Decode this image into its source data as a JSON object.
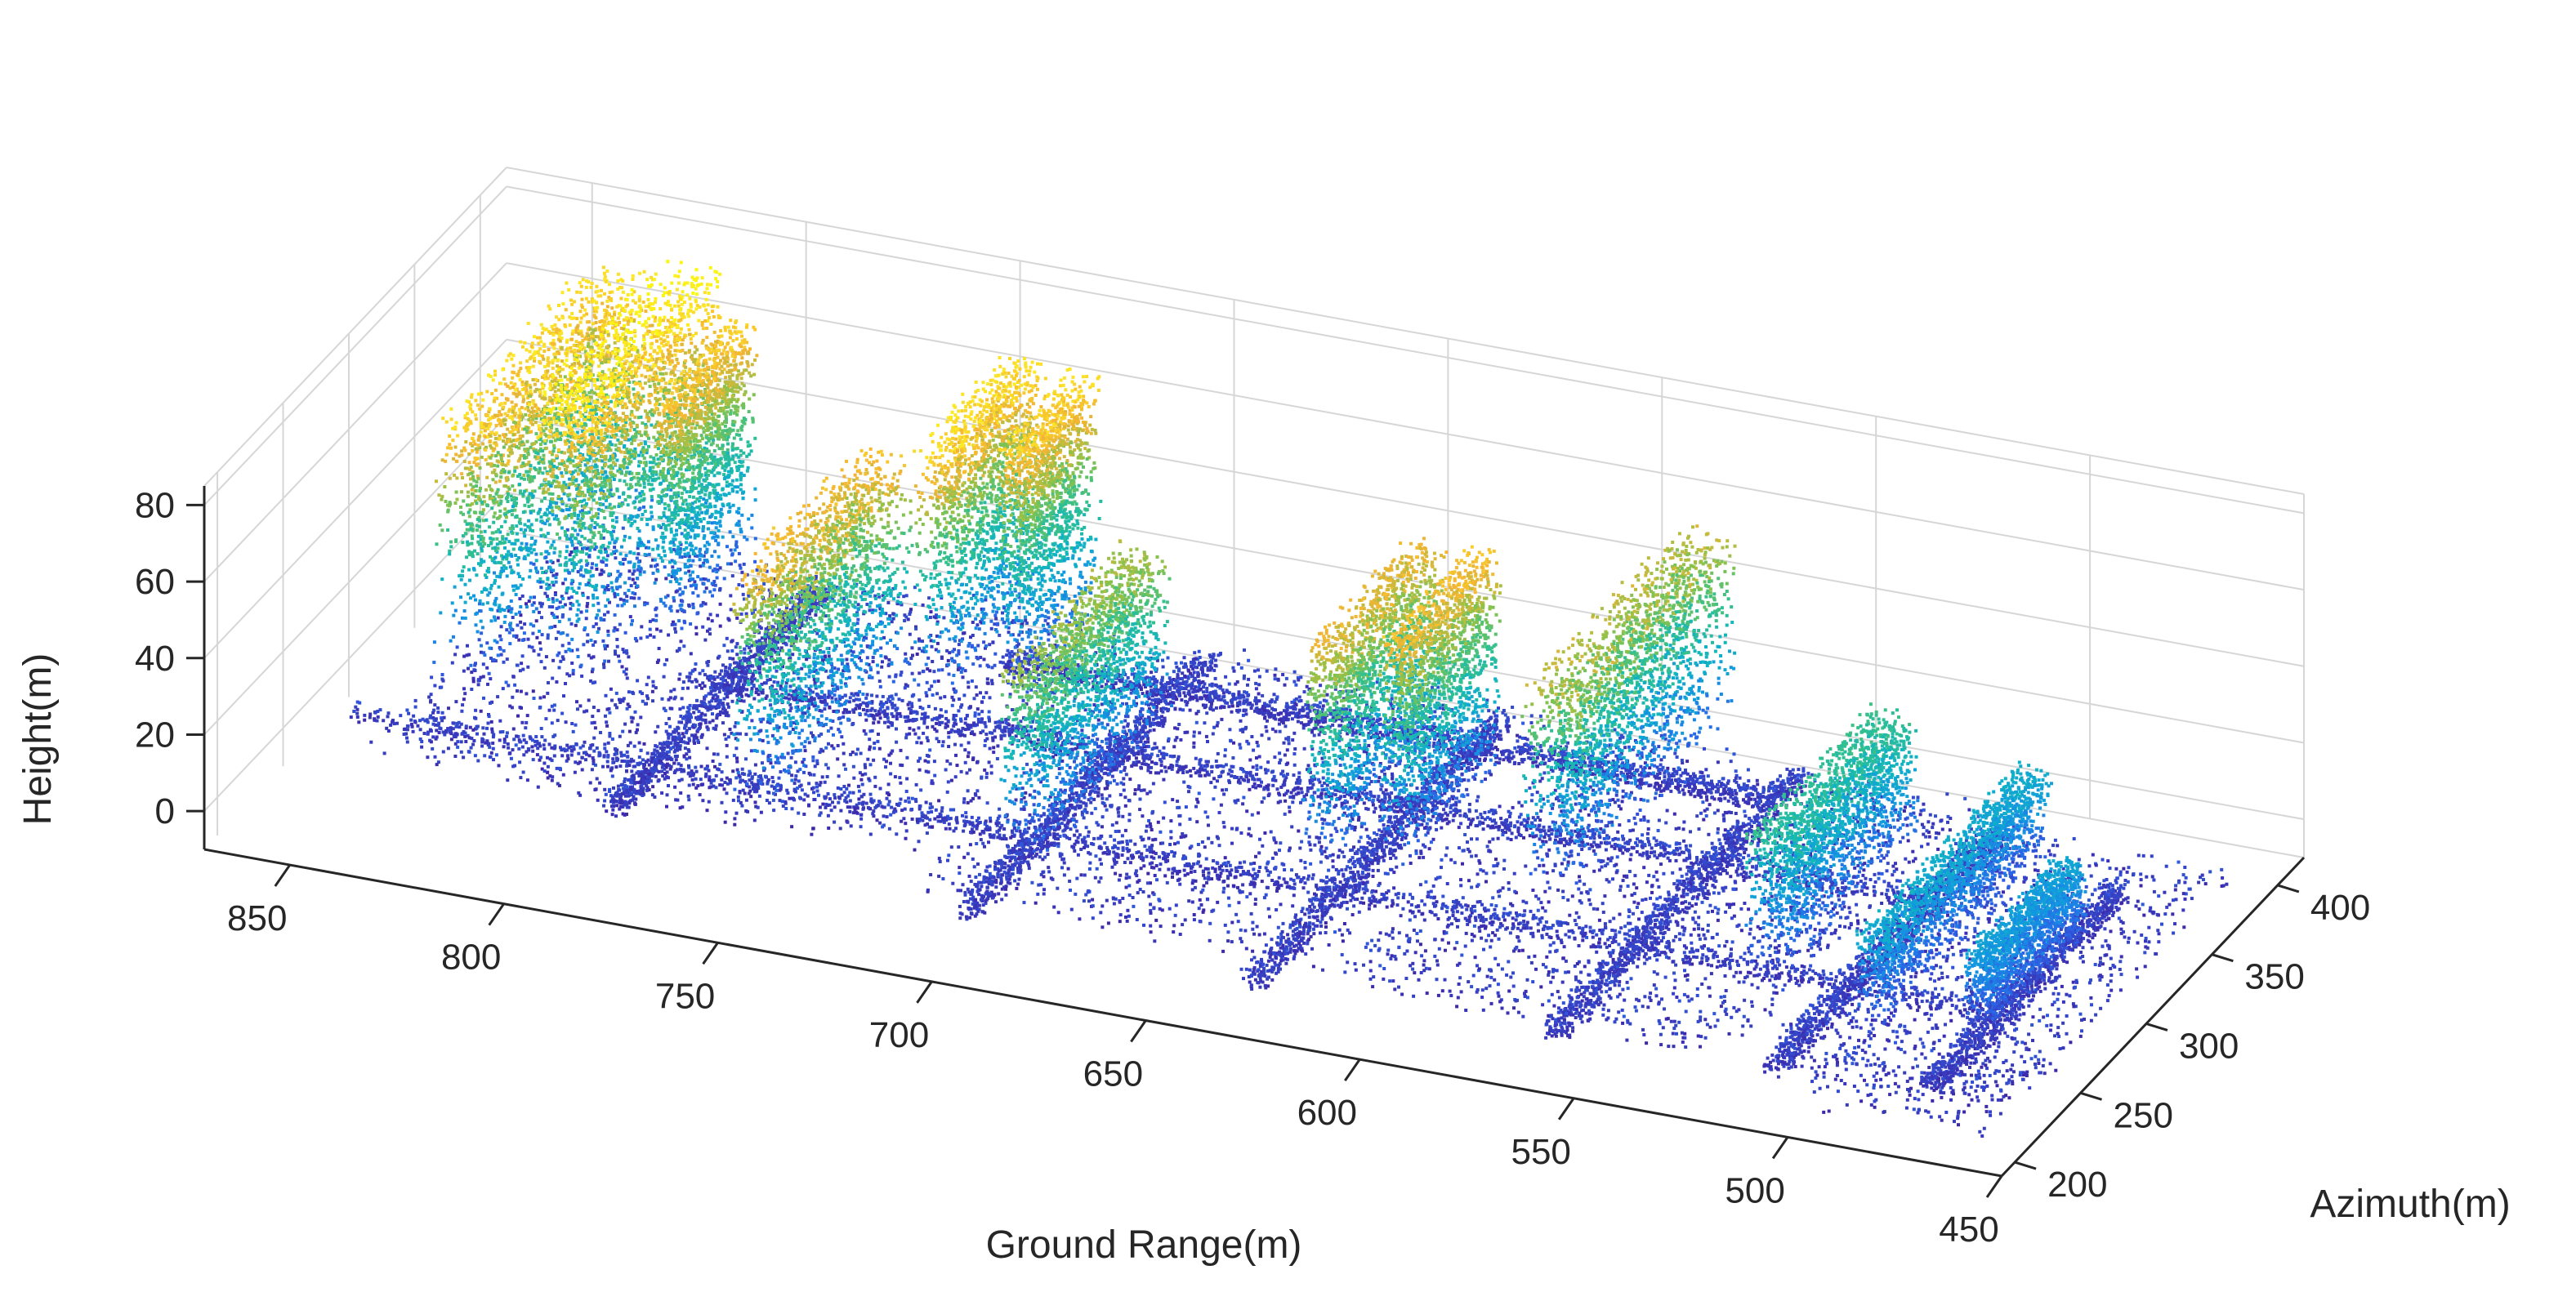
{
  "chart_data": {
    "type": "scatter",
    "projection": "3d",
    "title": "",
    "xlabel": "Ground Range(m)",
    "ylabel": "Azimuth(m)",
    "zlabel": "Height(m)",
    "xlim": [
      450,
      870
    ],
    "ylim": [
      190,
      420
    ],
    "zlim": [
      -10,
      85
    ],
    "xticks": [
      "850",
      "800",
      "750",
      "700",
      "650",
      "600",
      "550",
      "500",
      "450"
    ],
    "yticks": [
      "200",
      "250",
      "300",
      "350",
      "400"
    ],
    "zticks": [
      "0",
      "20",
      "40",
      "60",
      "80"
    ],
    "grid": true,
    "colormap": {
      "name": "parula",
      "stops": [
        "#3e26a8",
        "#2c61e5",
        "#1395e2",
        "#0fb4c4",
        "#33c08d",
        "#8ac24b",
        "#f3b433",
        "#fde725",
        "#f9fb0e"
      ]
    },
    "ground": {
      "height": 0,
      "lines": [
        {
          "kind": "range",
          "y": 270,
          "x": [
            470,
            860
          ]
        },
        {
          "kind": "range",
          "y": 330,
          "x": [
            510,
            800
          ]
        },
        {
          "kind": "range",
          "y": 375,
          "x": [
            560,
            740
          ]
        },
        {
          "kind": "azimuth",
          "x": 790,
          "y": [
            240,
            400
          ]
        },
        {
          "kind": "azimuth",
          "x": 700,
          "y": [
            215,
            400
          ]
        },
        {
          "kind": "azimuth",
          "x": 630,
          "y": [
            205,
            395
          ]
        },
        {
          "kind": "azimuth",
          "x": 560,
          "y": [
            205,
            395
          ]
        },
        {
          "kind": "azimuth",
          "x": 510,
          "y": [
            210,
            380
          ]
        },
        {
          "kind": "azimuth",
          "x": 475,
          "y": [
            215,
            360
          ]
        }
      ],
      "patches": [
        {
          "x": [
            720,
            850
          ],
          "y": [
            250,
            405
          ]
        },
        {
          "x": [
            620,
            715
          ],
          "y": [
            225,
            400
          ]
        },
        {
          "x": [
            520,
            615
          ],
          "y": [
            215,
            395
          ]
        },
        {
          "x": [
            455,
            515
          ],
          "y": [
            215,
            380
          ]
        },
        {
          "x": [
            455,
            500
          ],
          "y": [
            195,
            245
          ]
        }
      ]
    },
    "structures": [
      {
        "x": [
          832,
          848
        ],
        "y": [
          290,
          410
        ],
        "z_top": 70
      },
      {
        "x": [
          814,
          828
        ],
        "y": [
          300,
          405
        ],
        "z_top": 78
      },
      {
        "x": [
          805,
          812
        ],
        "y": [
          340,
          400
        ],
        "z_top": 66
      },
      {
        "x": [
          752,
          766
        ],
        "y": [
          250,
          345
        ],
        "z_top": 62
      },
      {
        "x": [
          738,
          748
        ],
        "y": [
          330,
          400
        ],
        "z_top": 70
      },
      {
        "x": [
          725,
          733
        ],
        "y": [
          345,
          400
        ],
        "z_top": 68
      },
      {
        "x": [
          690,
          702
        ],
        "y": [
          245,
          340
        ],
        "z_top": 52
      },
      {
        "x": [
          630,
          640
        ],
        "y": [
          275,
          355
        ],
        "z_top": 60
      },
      {
        "x": [
          616,
          624
        ],
        "y": [
          280,
          350
        ],
        "z_top": 63
      },
      {
        "x": [
          578,
          592
        ],
        "y": [
          285,
          405
        ],
        "z_top": 55
      },
      {
        "x": [
          520,
          532
        ],
        "y": [
          260,
          355
        ],
        "z_top": 38
      },
      {
        "x": [
          492,
          500
        ],
        "y": [
          240,
          365
        ],
        "z_top": 26
      },
      {
        "x": [
          470,
          478
        ],
        "y": [
          250,
          320
        ],
        "z_top": 22
      }
    ]
  }
}
